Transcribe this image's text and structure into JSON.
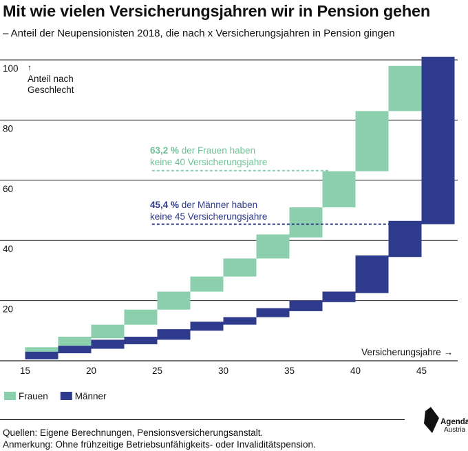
{
  "header": {
    "title": "Mit wie vielen Versicherungsjahren wir in Pension gehen",
    "subtitle": "– Anteil der Neupensionisten 2018, die nach x Versicherungsjahren in Pension gingen"
  },
  "chart_data": {
    "type": "bar",
    "subtype": "cumulative-step",
    "xlabel": "Versicherungsjahre →",
    "ylabel": "↑ Anteil nach Geschlecht",
    "xlim": [
      15,
      48
    ],
    "ylim": [
      0,
      100
    ],
    "xticks": [
      15,
      20,
      25,
      30,
      35,
      40,
      45
    ],
    "yticks": [
      20,
      40,
      60,
      80,
      100
    ],
    "grid": true,
    "legend_position": "bottom-left",
    "series": [
      {
        "name": "Frauen",
        "color": "#8ccfac",
        "x": [
          15,
          17.5,
          20,
          22.5,
          25,
          27.5,
          30,
          32.5,
          35,
          37.5,
          40,
          42.5,
          45
        ],
        "ranges": [
          [
            2.5,
            4.5
          ],
          [
            5,
            8
          ],
          [
            7.5,
            12
          ],
          [
            12,
            17
          ],
          [
            17,
            23
          ],
          [
            23,
            28
          ],
          [
            28,
            34
          ],
          [
            34,
            42
          ],
          [
            41,
            51
          ],
          [
            51,
            63
          ],
          [
            63,
            83
          ],
          [
            83,
            98
          ]
        ]
      },
      {
        "name": "Männer",
        "color": "#2e3a8c",
        "x": [
          15,
          17.5,
          20,
          22.5,
          25,
          27.5,
          30,
          32.5,
          35,
          37.5,
          40,
          42.5,
          45,
          47.5
        ],
        "ranges": [
          [
            0.5,
            3
          ],
          [
            2.5,
            5
          ],
          [
            4,
            7
          ],
          [
            5.5,
            8
          ],
          [
            7,
            10.5
          ],
          [
            10,
            13
          ],
          [
            12,
            14.5
          ],
          [
            14.5,
            17.5
          ],
          [
            16.5,
            20
          ],
          [
            19.5,
            23
          ],
          [
            22.5,
            35
          ],
          [
            34.5,
            46.5
          ],
          [
            45.4,
            101
          ]
        ]
      }
    ],
    "annotations": [
      {
        "pct": "63,2 %",
        "text_line1": " der Frauen haben",
        "text_line2": "keine 40 Versicherungsjahre",
        "y": 63.2,
        "x_from": 24.6,
        "x_to": 38
      },
      {
        "pct": "45,4 %",
        "text_line1": " der Männer haben",
        "text_line2": "keine 45 Versicherungsjahre",
        "y": 45.4,
        "x_from": 24.6,
        "x_to": 42.8
      }
    ]
  },
  "footer": {
    "source_line1": "Quellen: Eigene Berechnungen, Pensionsversicherungsanstalt.",
    "source_line2": "Anmerkung: Ohne frühzeitige Betriebsunfähigkeits- oder Invaliditätspension.",
    "logo_line1": "Agenda",
    "logo_line2": "Austria"
  }
}
